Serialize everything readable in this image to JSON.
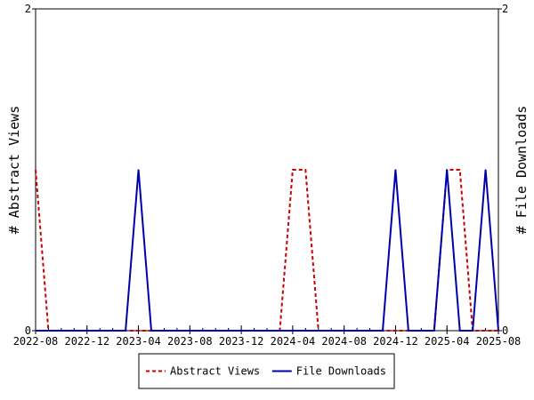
{
  "chart_data": {
    "type": "line",
    "ylabel_left": "# Abstract Views",
    "ylabel_right": "# File Downloads",
    "ylim": [
      0,
      2
    ],
    "y_ticks": [
      "0",
      "2"
    ],
    "x_ticks": [
      "2022-08",
      "2022-12",
      "2023-04",
      "2023-08",
      "2023-12",
      "2024-04",
      "2024-08",
      "2024-12",
      "2025-04",
      "2025-08"
    ],
    "x": [
      "2022-08",
      "2022-09",
      "2022-10",
      "2022-11",
      "2022-12",
      "2023-01",
      "2023-02",
      "2023-03",
      "2023-04",
      "2023-05",
      "2023-06",
      "2023-07",
      "2023-08",
      "2023-09",
      "2023-10",
      "2023-11",
      "2023-12",
      "2024-01",
      "2024-02",
      "2024-03",
      "2024-04",
      "2024-05",
      "2024-06",
      "2024-07",
      "2024-08",
      "2024-09",
      "2024-10",
      "2024-11",
      "2024-12",
      "2025-01",
      "2025-02",
      "2025-03",
      "2025-04",
      "2025-05",
      "2025-06",
      "2025-07",
      "2025-08"
    ],
    "series": [
      {
        "name": "Abstract Views",
        "axis": "left",
        "color": "#cc0000",
        "dash": "dashed",
        "values": [
          1,
          0,
          0,
          0,
          0,
          0,
          0,
          0,
          0,
          0,
          0,
          0,
          0,
          0,
          0,
          0,
          0,
          0,
          0,
          0,
          1,
          1,
          0,
          0,
          0,
          0,
          0,
          0,
          0,
          0,
          0,
          0,
          1,
          1,
          0,
          0,
          0
        ]
      },
      {
        "name": "File Downloads",
        "axis": "right",
        "color": "#0000aa",
        "dash": "solid",
        "values": [
          0,
          0,
          0,
          0,
          0,
          0,
          0,
          0,
          1,
          0,
          0,
          0,
          0,
          0,
          0,
          0,
          0,
          0,
          0,
          0,
          0,
          0,
          0,
          0,
          0,
          0,
          0,
          0,
          1,
          0,
          0,
          0,
          1,
          0,
          0,
          1,
          0
        ]
      }
    ],
    "legend_position": "bottom"
  }
}
